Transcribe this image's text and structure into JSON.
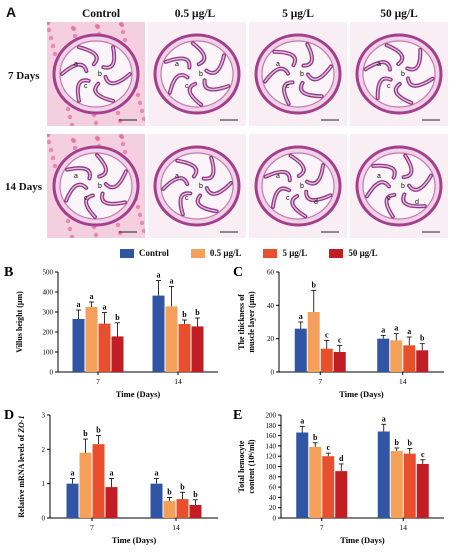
{
  "figure": {
    "panel_a": {
      "letter": "A",
      "columns": [
        "Control",
        "0.5 μg/L",
        "5 μg/L",
        "50 μg/L"
      ],
      "rows": [
        "7 Days",
        "14 Days"
      ],
      "tissue_labels": [
        "a",
        "b",
        "c",
        "d"
      ]
    },
    "legend": {
      "entries": [
        "Control",
        "0.5 μg/L",
        "5 μg/L",
        "50 μg/L"
      ],
      "colors": [
        "#2f55a4",
        "#f5a05a",
        "#e8502d",
        "#c01d24"
      ]
    }
  },
  "chart_data": [
    {
      "panel": "B",
      "type": "bar",
      "categories": [
        "7",
        "14"
      ],
      "series": [
        {
          "name": "Control",
          "values": [
            265,
            382
          ],
          "errors": [
            45,
            75
          ],
          "letters": [
            "a",
            "a"
          ]
        },
        {
          "name": "0.5 μg/L",
          "values": [
            325,
            328
          ],
          "errors": [
            25,
            100
          ],
          "letters": [
            "a",
            "a"
          ]
        },
        {
          "name": "5 μg/L",
          "values": [
            242,
            240
          ],
          "errors": [
            55,
            20
          ],
          "letters": [
            "a",
            "b"
          ]
        },
        {
          "name": "50 μg/L",
          "values": [
            178,
            228
          ],
          "errors": [
            68,
            42
          ],
          "letters": [
            "b",
            "b"
          ]
        }
      ],
      "ylabel": "Villus height (μm)",
      "xlabel": "Time (Days)",
      "ylim": [
        0,
        500
      ],
      "yticks": [
        0,
        100,
        200,
        300,
        400,
        500
      ]
    },
    {
      "panel": "C",
      "type": "bar",
      "categories": [
        "7",
        "14"
      ],
      "series": [
        {
          "name": "Control",
          "values": [
            26,
            20
          ],
          "errors": [
            4,
            2
          ],
          "letters": [
            "a",
            "a"
          ]
        },
        {
          "name": "0.5 μg/L",
          "values": [
            36,
            19
          ],
          "errors": [
            13,
            4
          ],
          "letters": [
            "b",
            "a"
          ]
        },
        {
          "name": "5 μg/L",
          "values": [
            14,
            16
          ],
          "errors": [
            5,
            5
          ],
          "letters": [
            "c",
            "a"
          ]
        },
        {
          "name": "50 μg/L",
          "values": [
            12,
            13
          ],
          "errors": [
            4,
            4
          ],
          "letters": [
            "c",
            "b"
          ]
        }
      ],
      "ylabel": "The thickness of muscle layer (μm)",
      "xlabel": "Time (Days)",
      "ylim": [
        0,
        60
      ],
      "yticks": [
        0,
        20,
        40,
        60
      ]
    },
    {
      "panel": "D",
      "type": "bar",
      "categories": [
        "7",
        "14"
      ],
      "series": [
        {
          "name": "Control",
          "values": [
            1.0,
            1.0
          ],
          "errors": [
            0.15,
            0.15
          ],
          "letters": [
            "a",
            "a"
          ]
        },
        {
          "name": "0.5 μg/L",
          "values": [
            1.9,
            0.5
          ],
          "errors": [
            0.4,
            0.1
          ],
          "letters": [
            "b",
            "b"
          ]
        },
        {
          "name": "5 μg/L",
          "values": [
            2.15,
            0.55
          ],
          "errors": [
            0.25,
            0.2
          ],
          "letters": [
            "b",
            "b"
          ]
        },
        {
          "name": "50 μg/L",
          "values": [
            0.9,
            0.38
          ],
          "errors": [
            0.25,
            0.15
          ],
          "letters": [
            "a",
            "b"
          ]
        }
      ],
      "ylabel_prefix": "Relative mRNA levels of ",
      "ylabel_gene": "ZO-1",
      "xlabel": "Time (Days)",
      "ylim": [
        0,
        3
      ],
      "yticks": [
        0,
        1,
        2,
        3
      ]
    },
    {
      "panel": "E",
      "type": "bar",
      "categories": [
        "7",
        "14"
      ],
      "series": [
        {
          "name": "Control",
          "values": [
            166,
            168
          ],
          "errors": [
            12,
            14
          ],
          "letters": [
            "a",
            "a"
          ]
        },
        {
          "name": "0.5 μg/L",
          "values": [
            138,
            130
          ],
          "errors": [
            8,
            6
          ],
          "letters": [
            "b",
            "b"
          ]
        },
        {
          "name": "5 μg/L",
          "values": [
            120,
            125
          ],
          "errors": [
            6,
            10
          ],
          "letters": [
            "c",
            "b"
          ]
        },
        {
          "name": "50 μg/L",
          "values": [
            91,
            105
          ],
          "errors": [
            14,
            8
          ],
          "letters": [
            "d",
            "c"
          ]
        }
      ],
      "ylabel_line1": "Total hemocyte",
      "ylabel_line2": "content (10⁶/ml)",
      "xlabel": "Time (Days)",
      "ylim": [
        0,
        200
      ],
      "yticks": [
        0,
        20,
        40,
        60,
        80,
        100,
        120,
        140,
        160,
        180,
        200
      ]
    }
  ]
}
